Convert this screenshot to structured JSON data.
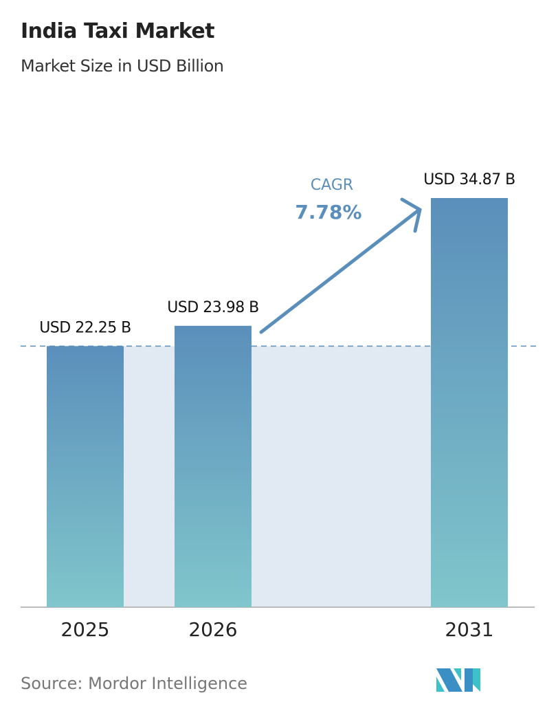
{
  "chart_data": {
    "type": "bar",
    "title": "India Taxi Market",
    "subtitle": "Market Size in USD Billion",
    "categories": [
      "2025",
      "2026",
      "2031"
    ],
    "values": [
      22.25,
      23.98,
      34.87
    ],
    "value_labels": [
      "USD 22.25 B",
      "USD 23.98 B",
      "USD 34.87 B"
    ],
    "annotation": {
      "label": "CAGR",
      "value": "7.78%"
    },
    "ylim": [
      0,
      34.87
    ],
    "grid": false,
    "colors": {
      "bar_top": "#5b8fbb",
      "bar_bottom": "#80c6cb",
      "band": "#e1eaf2",
      "accent": "#5b8fbb"
    }
  },
  "source": "Source:  Mordor Intelligence",
  "logo": "Mordor Intelligence logo"
}
